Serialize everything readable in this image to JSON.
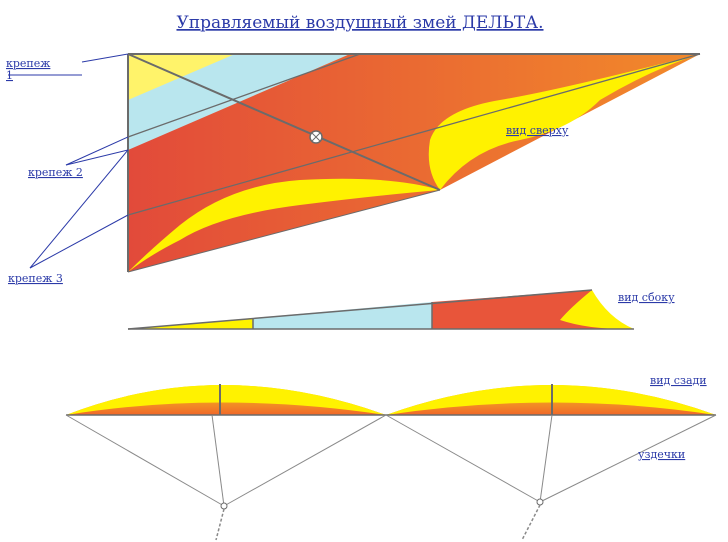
{
  "title": "Управляемый воздушный змей ДЕЛЬТА.",
  "labels": {
    "mount1_line1": "крепеж",
    "mount1_line2": "1",
    "mount2": "крепеж 2",
    "mount3": "крепеж 3",
    "top_view": "вид сверху",
    "side_view": "вид сбоку",
    "rear_view": "вид сзади",
    "bridles": "уздечки"
  },
  "colors": {
    "red_orange": "#e8553a",
    "orange": "#f07a2a",
    "yellow": "#fff200",
    "light_blue": "#b9e6ee",
    "frame": "#6b6b6b",
    "label_blue": "#2b3aa8"
  }
}
